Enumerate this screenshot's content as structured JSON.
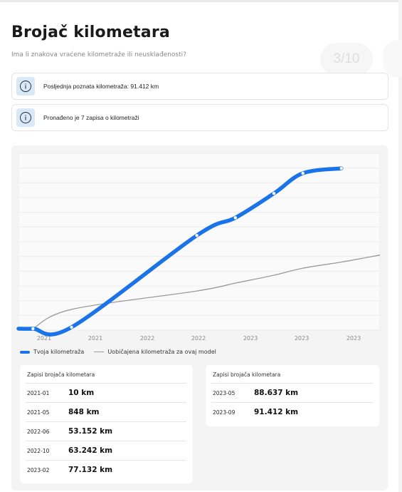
{
  "page": {
    "title": "Brojač kilometara",
    "subtitle": "Ima li znakova vraćene kilometraže ili neusklađenosti?",
    "step": "3/10"
  },
  "info_cards": [
    {
      "text": "Posljednja poznata kilometraža: 91.412 km",
      "icon": "info-circle-icon"
    },
    {
      "text": "Pronađeno je 7 zapisa o kilometraži",
      "icon": "info-circle-icon"
    }
  ],
  "colors": {
    "accent": "#1a73e8",
    "baseline": "#9a9a9a",
    "icon_bg": "#d8eafa"
  },
  "chart_data": {
    "type": "line",
    "x_tick_labels": [
      "2021",
      "2021",
      "2022",
      "2022",
      "2023",
      "2023",
      "2023"
    ],
    "ylim": [
      0,
      100000
    ],
    "grid": true,
    "legend_placement": "bottom-left",
    "series": [
      {
        "name": "Tvoja kilometraža",
        "x": [
          "2021-01",
          "2021-05",
          "2022-06",
          "2022-10",
          "2023-02",
          "2023-05",
          "2023-09"
        ],
        "y": [
          10,
          848,
          53152,
          63242,
          77132,
          88637,
          91412
        ],
        "color": "#1a73e8"
      },
      {
        "name": "Uobičajena kilometraža za ovaj model",
        "x": [
          "2021-01",
          "2021-05",
          "2022-06",
          "2022-10",
          "2023-02",
          "2023-05",
          "2023-09",
          "2024-01"
        ],
        "y": [
          10,
          11000,
          21500,
          26000,
          30500,
          34500,
          38000,
          42000
        ],
        "color": "#9a9a9a"
      }
    ]
  },
  "tables": [
    {
      "header": "Zapisi brojača kilometara",
      "rows": [
        {
          "date": "2021-01",
          "km": "10 km"
        },
        {
          "date": "2021-05",
          "km": "848 km"
        },
        {
          "date": "2022-06",
          "km": "53.152 km"
        },
        {
          "date": "2022-10",
          "km": "63.242 km"
        },
        {
          "date": "2023-02",
          "km": "77.132 km"
        }
      ]
    },
    {
      "header": "Zapisi brojača kilometara",
      "rows": [
        {
          "date": "2023-05",
          "km": "88.637 km"
        },
        {
          "date": "2023-09",
          "km": "91.412 km"
        }
      ]
    }
  ]
}
